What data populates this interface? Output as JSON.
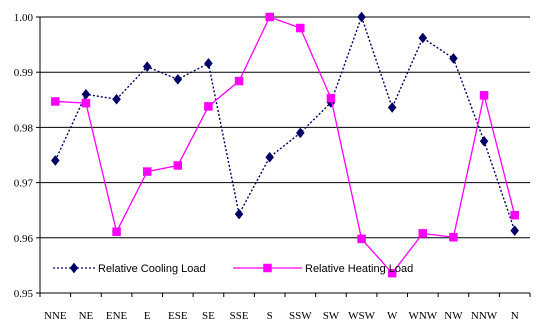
{
  "chart_data": {
    "type": "line",
    "categories": [
      "NNE",
      "NE",
      "ENE",
      "E",
      "ESE",
      "SE",
      "SSE",
      "S",
      "SSW",
      "SW",
      "WSW",
      "W",
      "WNW",
      "NW",
      "NNW",
      "N"
    ],
    "ylim": [
      0.95,
      1.0
    ],
    "yticks": [
      "0.95",
      "0.96",
      "0.97",
      "0.98",
      "0.99",
      "1.00"
    ],
    "grid": true,
    "legend_position": "bottom-left, inside plot",
    "series": [
      {
        "name": "Relative Cooling Load",
        "color": "#000066",
        "line_style": "dotted",
        "marker": "diamond",
        "values": [
          0.974,
          0.986,
          0.9851,
          0.991,
          0.9887,
          0.9916,
          0.9643,
          0.9746,
          0.979,
          0.9845,
          1.0,
          0.9836,
          0.9962,
          0.9925,
          0.9775,
          0.9613
        ]
      },
      {
        "name": "Relative Heating Load",
        "color": "#ff00ff",
        "line_style": "solid",
        "marker": "square",
        "values": [
          0.9847,
          0.9844,
          0.9611,
          0.972,
          0.9731,
          0.9838,
          0.9884,
          1.0,
          0.998,
          0.9853,
          0.9598,
          0.9536,
          0.9608,
          0.9601,
          0.9858,
          0.9641
        ]
      }
    ]
  }
}
